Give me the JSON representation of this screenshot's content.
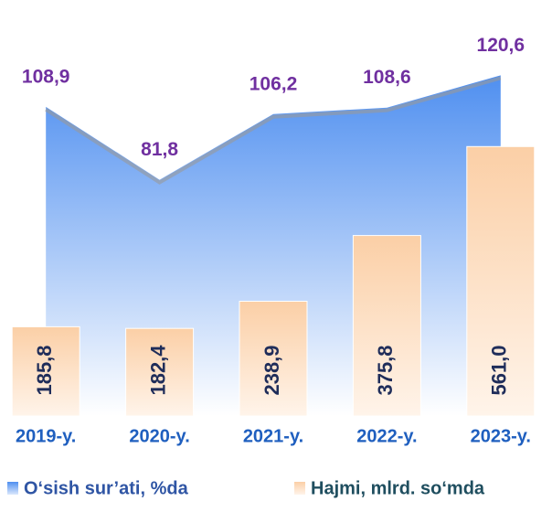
{
  "chart_data": {
    "type": "combo",
    "categories": [
      "2019-y.",
      "2020-y.",
      "2021-y.",
      "2022-y.",
      "2023-y."
    ],
    "series": [
      {
        "name": "O‘sish sur’ati, %da",
        "type": "area",
        "axis": "y2",
        "color": "#4f8ff0",
        "values": [
          108.9,
          81.8,
          106.2,
          108.6,
          120.6
        ],
        "value_labels": [
          "108,9",
          "81,8",
          "106,2",
          "108,6",
          "120,6"
        ]
      },
      {
        "name": "Hajmi, mlrd. so‘mda",
        "type": "bar",
        "color": "#fbcfa6",
        "values": [
          185.8,
          182.4,
          238.9,
          375.8,
          561.0
        ],
        "value_labels": [
          "185,8",
          "182,4",
          "238,9",
          "375,8",
          "561,0"
        ]
      }
    ],
    "ylim": [
      0,
      790
    ],
    "y2lim": [
      -6,
      135
    ],
    "legend": "bottom"
  }
}
